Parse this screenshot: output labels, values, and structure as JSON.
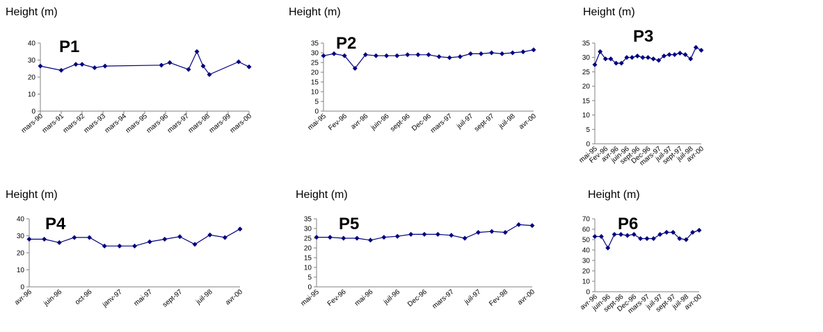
{
  "chart_data": [
    {
      "type": "line",
      "title": "P1",
      "y_label": "Height (m)",
      "color": "#000080",
      "x": [
        1990.0,
        1991.0,
        1991.7,
        1992.0,
        1992.6,
        1993.1,
        1995.8,
        1996.2,
        1997.1,
        1997.5,
        1997.8,
        1998.1,
        1999.5,
        2000.0
      ],
      "values": [
        26.5,
        24,
        27.5,
        27.5,
        25.5,
        26.5,
        27,
        28.5,
        24.5,
        35,
        26.5,
        21.5,
        29,
        26
      ],
      "xlim": [
        1990,
        2000
      ],
      "xticks": [
        {
          "value": 1990,
          "label": "mars-90"
        },
        {
          "value": 1991,
          "label": "mars-91"
        },
        {
          "value": 1992,
          "label": "mars-92"
        },
        {
          "value": 1993,
          "label": "mars-93"
        },
        {
          "value": 1994,
          "label": "mars-94"
        },
        {
          "value": 1995,
          "label": "mars-95"
        },
        {
          "value": 1996,
          "label": "mars-96"
        },
        {
          "value": 1997,
          "label": "mars-97"
        },
        {
          "value": 1998,
          "label": "mars-98"
        },
        {
          "value": 1999,
          "label": "mars-99"
        },
        {
          "value": 2000,
          "label": "mars-00"
        }
      ],
      "ylim": [
        0,
        40
      ],
      "yticks": [
        0,
        10,
        20,
        30,
        40
      ]
    },
    {
      "type": "line",
      "title": "P2",
      "y_label": "Height (m)",
      "color": "#000080",
      "categories": [
        "mai-95",
        null,
        "Fev-96",
        null,
        "avr-96",
        null,
        "juin-96",
        null,
        "sept-96",
        null,
        "Dec-96",
        null,
        "mars-97",
        null,
        "juil-97",
        null,
        "sept-97",
        null,
        "juil-98",
        null,
        "avr-00"
      ],
      "values": [
        28.5,
        29.5,
        28.5,
        22,
        29,
        28.5,
        28.5,
        28.5,
        29,
        29,
        29,
        28,
        27.5,
        28,
        29.5,
        29.5,
        30,
        29.5,
        30,
        30.5,
        31.5
      ],
      "ylim": [
        0,
        35
      ],
      "yticks": [
        0,
        5,
        10,
        15,
        20,
        25,
        30,
        35
      ]
    },
    {
      "type": "line",
      "title": "P3",
      "y_label": "Height (m)",
      "color": "#000080",
      "categories": [
        "mai-95",
        null,
        "Fev-96",
        null,
        "avr-96",
        null,
        "juin-96",
        null,
        "sept-96",
        null,
        "Dec-96",
        null,
        "mars-97",
        null,
        "juil-97",
        null,
        "sept-97",
        null,
        "juil-98",
        null,
        "avr-00"
      ],
      "values": [
        27.5,
        32,
        29.5,
        29.5,
        28,
        28,
        30,
        30,
        30.5,
        30,
        30,
        29.5,
        29,
        30.5,
        31,
        31,
        31.5,
        31,
        29.5,
        33.5,
        32.5
      ],
      "ylim": [
        0,
        35
      ],
      "yticks": [
        0,
        5,
        10,
        15,
        20,
        25,
        30,
        35
      ]
    },
    {
      "type": "line",
      "title": "P4",
      "y_label": "Height (m)",
      "color": "#000080",
      "categories": [
        "avr-96",
        null,
        "juin-96",
        null,
        "oct-96",
        null,
        "janv-97",
        null,
        "mai-97",
        null,
        "sept-97",
        null,
        "juil-98",
        null,
        "avr-00"
      ],
      "values": [
        28,
        28,
        26,
        29,
        29,
        24,
        24,
        24,
        26.5,
        28,
        29.5,
        25,
        30.5,
        29,
        34
      ],
      "ylim": [
        0,
        40
      ],
      "yticks": [
        0,
        10,
        20,
        30,
        40
      ]
    },
    {
      "type": "line",
      "title": "P5",
      "y_label": "Height (m)",
      "color": "#000080",
      "categories": [
        "mai-95",
        null,
        "Fev-96",
        null,
        "mai-96",
        null,
        "juil-96",
        null,
        "Dec-96",
        null,
        "mars-97",
        null,
        "juil-97",
        null,
        "Fev-98",
        null,
        "avr-00"
      ],
      "values": [
        25.5,
        25.5,
        25,
        25,
        24,
        25.5,
        26,
        27,
        27,
        27,
        26.5,
        25,
        28,
        28.5,
        28,
        32,
        31.5
      ],
      "ylim": [
        0,
        35
      ],
      "yticks": [
        0,
        5,
        10,
        15,
        20,
        25,
        30,
        35
      ]
    },
    {
      "type": "line",
      "title": "P6",
      "y_label": "Height (m)",
      "color": "#000080",
      "categories": [
        "avr-96",
        null,
        "juin-96",
        null,
        "sept-96",
        null,
        "Dec-96",
        null,
        "mars-97",
        null,
        "juil-97",
        null,
        "sept-97",
        null,
        "juil-98",
        null,
        "avr-00"
      ],
      "values": [
        53,
        53,
        42,
        55,
        55,
        54,
        55,
        51,
        51,
        51,
        55,
        57,
        57,
        51,
        50,
        57,
        59
      ],
      "ylim": [
        0,
        70
      ],
      "yticks": [
        0,
        10,
        20,
        30,
        40,
        50,
        60,
        70
      ]
    }
  ]
}
